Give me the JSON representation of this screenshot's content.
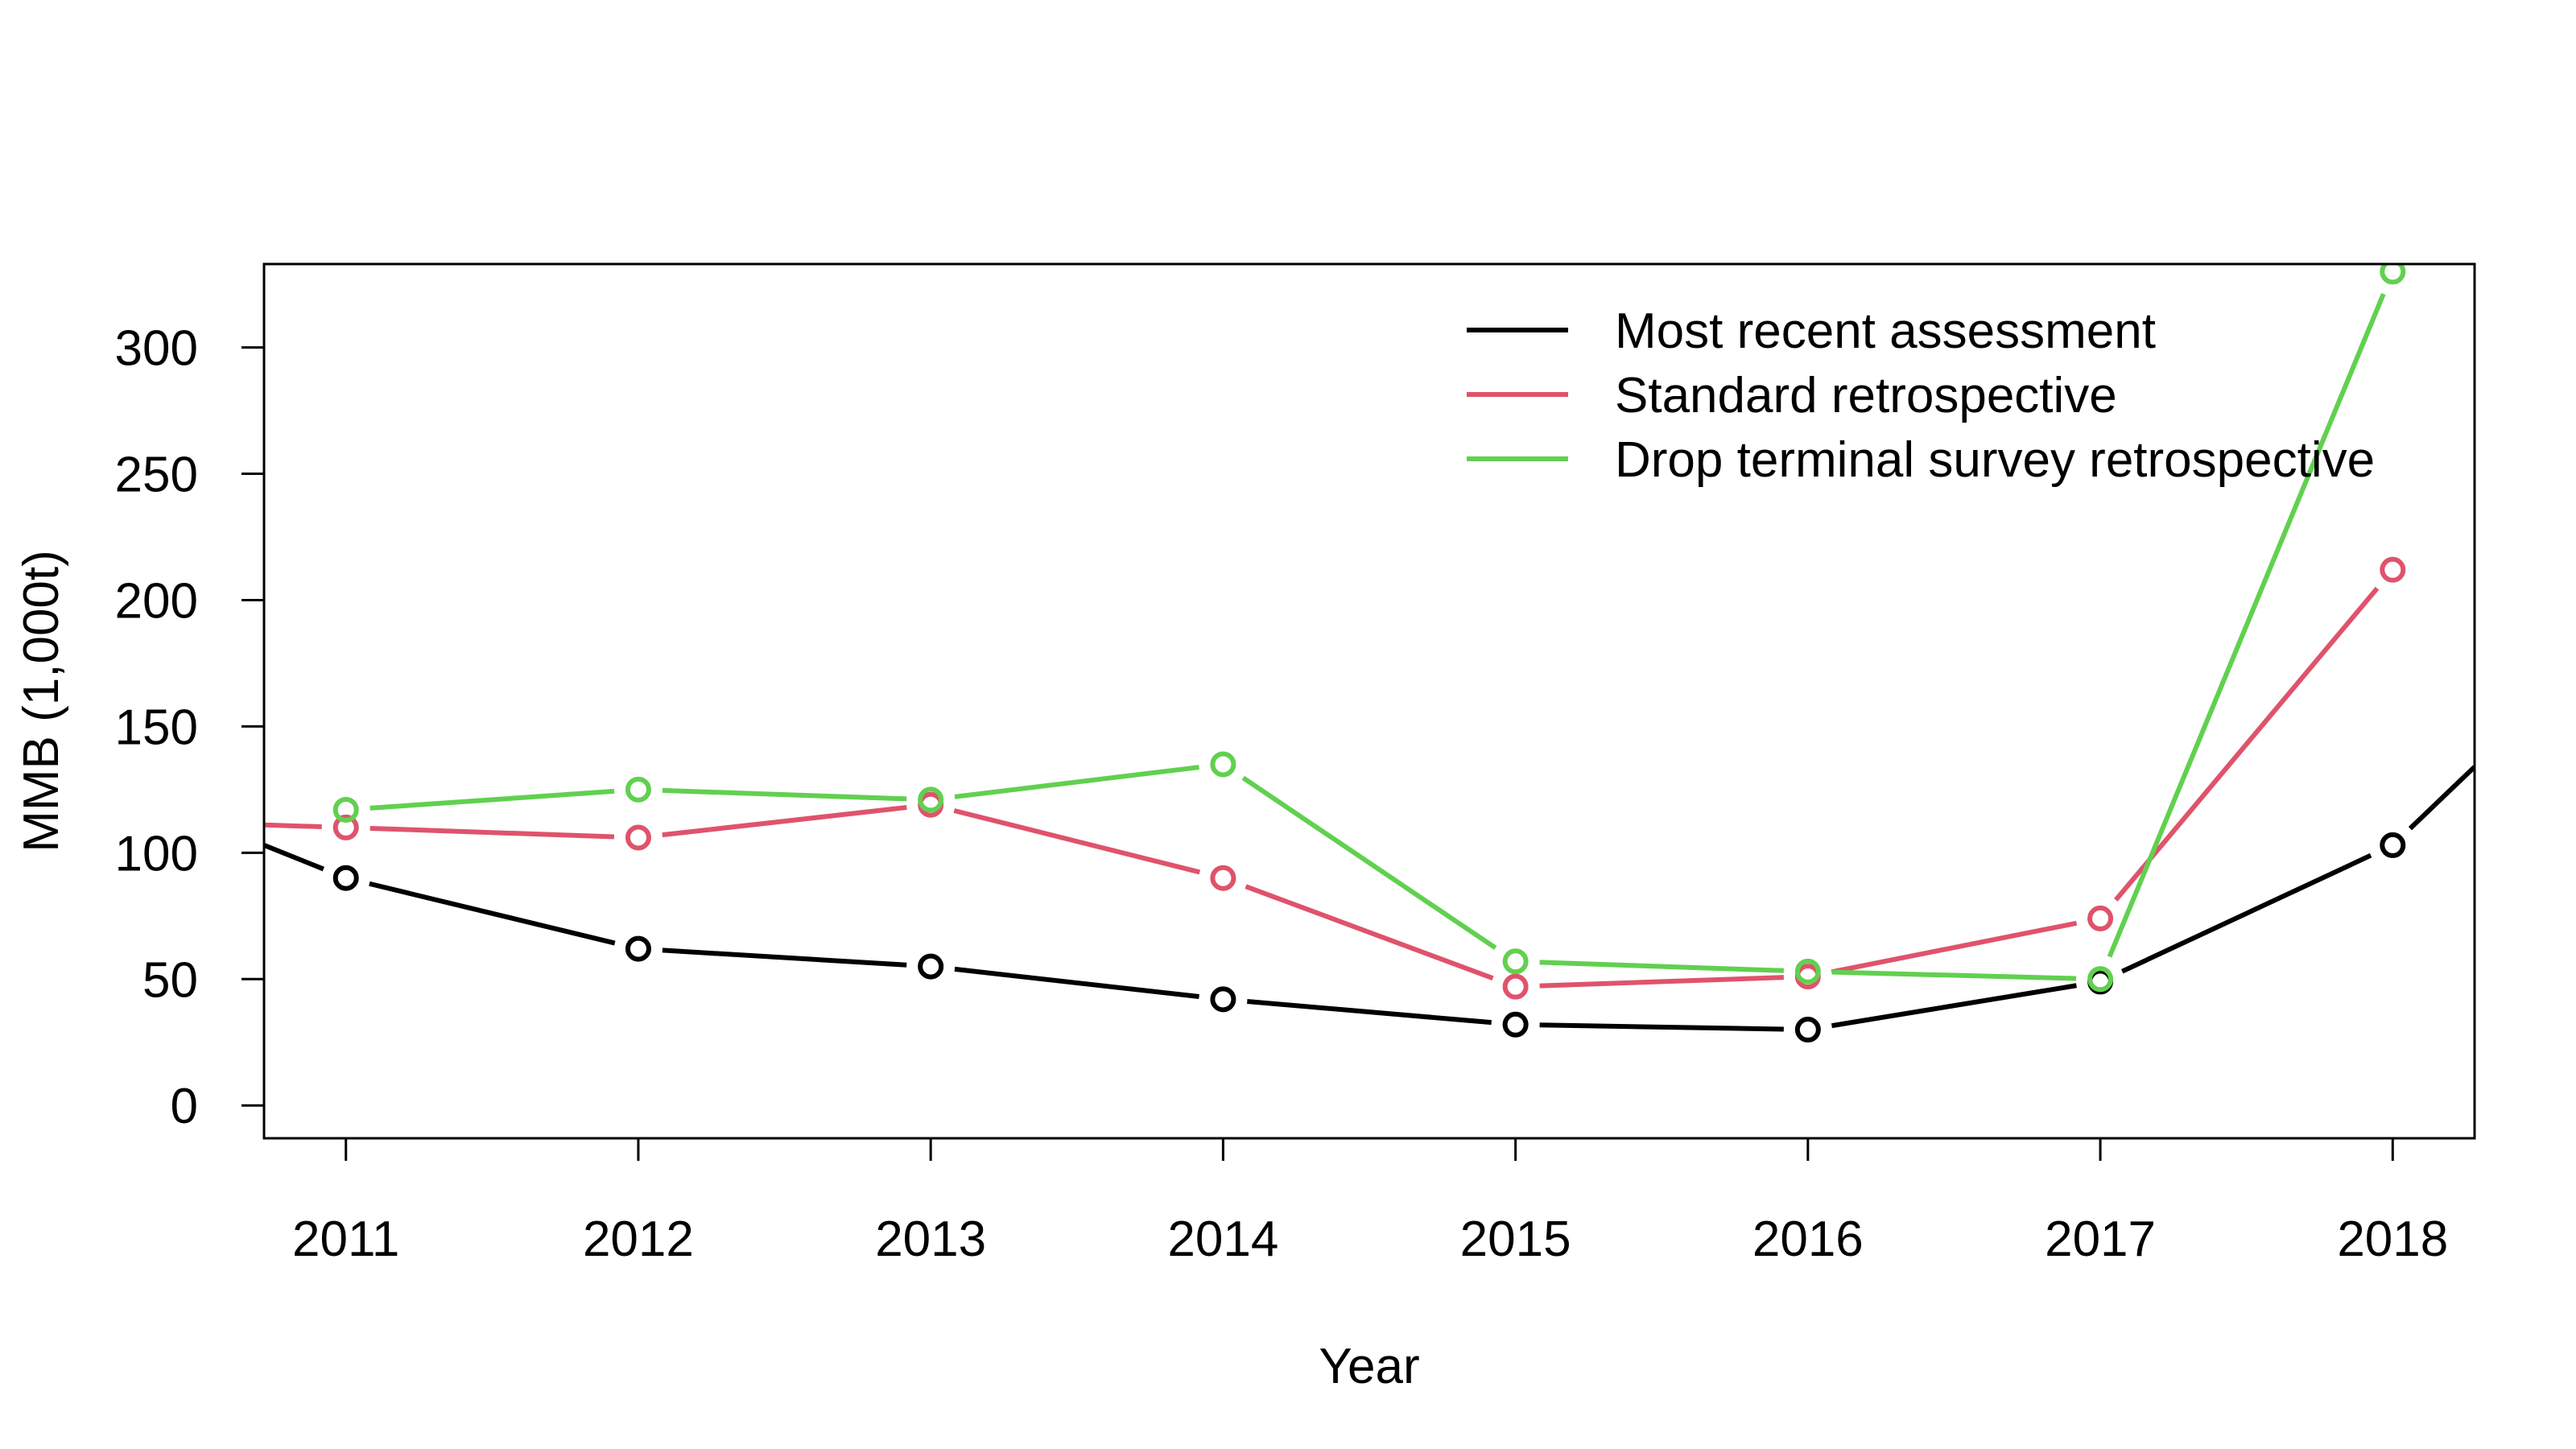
{
  "chart_data": {
    "type": "line",
    "title": "",
    "xlabel": "Year",
    "ylabel": "MMB (1,000t)",
    "x": [
      2011,
      2012,
      2013,
      2014,
      2015,
      2016,
      2017,
      2018
    ],
    "xlim": [
      2010.72,
      2018.28
    ],
    "ylim": [
      -13,
      333
    ],
    "yticks": [
      0,
      50,
      100,
      150,
      200,
      250,
      300
    ],
    "grid": false,
    "legend_position": "top-right",
    "series": [
      {
        "name": "Most recent assessment",
        "color": "#000000",
        "values": [
          90,
          62,
          55,
          42,
          32,
          30,
          49,
          103
        ],
        "line_x": [
          2010.72,
          2011,
          2012,
          2013,
          2014,
          2015,
          2016,
          2017,
          2018,
          2018.28
        ],
        "line_values": [
          103,
          90,
          62,
          55,
          42,
          32,
          30,
          49,
          103,
          134
        ]
      },
      {
        "name": "Standard retrospective",
        "color": "#DF536B",
        "values": [
          110,
          106,
          119,
          90,
          47,
          51,
          74,
          212
        ],
        "line_x": [
          2010.72,
          2011,
          2012,
          2013,
          2014,
          2015,
          2016,
          2017,
          2018
        ],
        "line_values": [
          111,
          110,
          106,
          119,
          90,
          47,
          51,
          74,
          212
        ]
      },
      {
        "name": "Drop terminal survey retrospective",
        "color": "#61D04F",
        "values": [
          117,
          125,
          121,
          135,
          57,
          53,
          50,
          330
        ],
        "line_x": [
          2011,
          2012,
          2013,
          2014,
          2015,
          2016,
          2017,
          2018
        ],
        "line_values": [
          117,
          125,
          121,
          135,
          57,
          53,
          50,
          330
        ]
      }
    ]
  }
}
